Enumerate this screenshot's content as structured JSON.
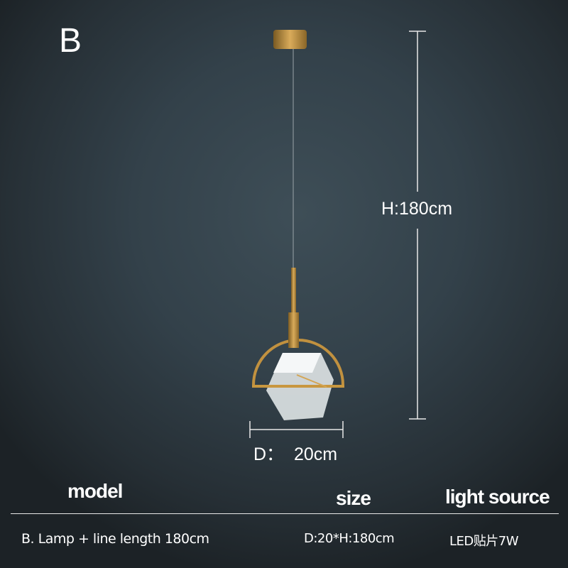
{
  "variant_label": "B",
  "dimensions": {
    "height": "H:180cm",
    "diameter": "D：  20cm"
  },
  "table": {
    "headers": {
      "model": "model",
      "size": "size",
      "light_source": "light source"
    },
    "rows": [
      {
        "model": "B. Lamp + line length 180cm",
        "size": "D:20*H:180cm",
        "light_source": "LED贴片7W"
      }
    ]
  },
  "colors": {
    "gold": "#b88a3a",
    "background": "#33414a"
  }
}
